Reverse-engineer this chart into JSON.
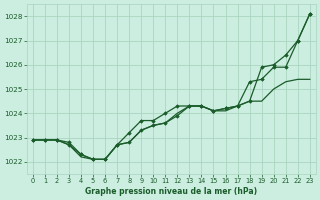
{
  "title": "Graphe pression niveau de la mer (hPa)",
  "bg_color": "#cceee0",
  "grid_color": "#aad4c0",
  "line_color": "#1a5c2a",
  "marker_color": "#1a5c2a",
  "xlim": [
    -0.5,
    23.5
  ],
  "ylim": [
    1021.5,
    1028.5
  ],
  "yticks": [
    1022,
    1023,
    1024,
    1025,
    1026,
    1027,
    1028
  ],
  "xticks": [
    0,
    1,
    2,
    3,
    4,
    5,
    6,
    7,
    8,
    9,
    10,
    11,
    12,
    13,
    14,
    15,
    16,
    17,
    18,
    19,
    20,
    21,
    22,
    23
  ],
  "series1_x": [
    0,
    1,
    2,
    3,
    4,
    5,
    6,
    7,
    8,
    9,
    10,
    11,
    12,
    13,
    14,
    15,
    16,
    17,
    18,
    19,
    20,
    21,
    22,
    23
  ],
  "series1_y": [
    1022.9,
    1022.9,
    1022.9,
    1022.8,
    1022.3,
    1022.1,
    1022.1,
    1022.7,
    1022.8,
    1023.3,
    1023.5,
    1023.6,
    1023.9,
    1024.3,
    1024.3,
    1024.1,
    1024.2,
    1024.3,
    1024.5,
    1025.9,
    1026.0,
    1026.4,
    1027.0,
    1028.1
  ],
  "series2_x": [
    0,
    1,
    2,
    3,
    4,
    5,
    6,
    7,
    8,
    9,
    10,
    11,
    12,
    13,
    14,
    15,
    16,
    17,
    18,
    19,
    20,
    21,
    22,
    23
  ],
  "series2_y": [
    1022.9,
    1022.9,
    1022.9,
    1022.7,
    1022.3,
    1022.1,
    1022.1,
    1022.7,
    1023.2,
    1023.7,
    1023.7,
    1024.0,
    1024.3,
    1024.3,
    1024.3,
    1024.1,
    1024.2,
    1024.3,
    1025.3,
    1025.4,
    1025.9,
    1025.9,
    1027.0,
    1028.1
  ],
  "series3_x": [
    0,
    1,
    2,
    3,
    4,
    5,
    6,
    7,
    8,
    9,
    10,
    11,
    12,
    13,
    14,
    15,
    16,
    17,
    18,
    19,
    20,
    21,
    22,
    23
  ],
  "series3_y": [
    1022.9,
    1022.9,
    1022.9,
    1022.7,
    1022.2,
    1022.1,
    1022.1,
    1022.7,
    1022.8,
    1023.3,
    1023.5,
    1023.6,
    1024.0,
    1024.3,
    1024.3,
    1024.1,
    1024.1,
    1024.3,
    1024.5,
    1024.5,
    1025.0,
    1025.3,
    1025.4,
    1025.4
  ]
}
